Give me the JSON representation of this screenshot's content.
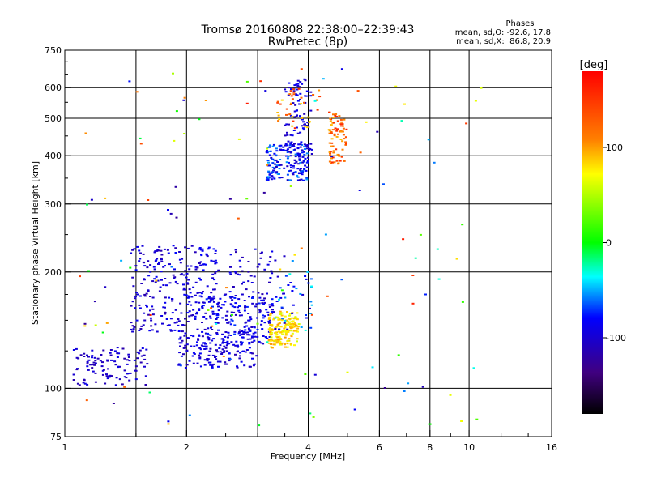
{
  "chart_data": {
    "type": "scatter",
    "title": "Tromsø 20160808 22:38:00–22:39:43",
    "subtitle": "RwPretec (8p)",
    "xlabel": "Frequency [MHz]",
    "ylabel": "Stationary phase Virtual Height [km]",
    "x_scale": "log",
    "y_scale": "log",
    "xlim": [
      1,
      16
    ],
    "ylim": [
      75,
      750
    ],
    "x_ticks": [
      1,
      2,
      4,
      6,
      8,
      10,
      16
    ],
    "x_tick_labels": [
      "1",
      "2",
      "4",
      "6",
      "8",
      "10",
      "16"
    ],
    "y_ticks": [
      75,
      100,
      200,
      300,
      400,
      500,
      600,
      750
    ],
    "y_tick_labels": [
      "75",
      "100",
      "200",
      "300",
      "400",
      "500",
      "600",
      "750"
    ],
    "grid": true,
    "legend_title": "Phases",
    "legend_lines": [
      "mean, sd,O: -92.6, 17.8",
      "mean, sd,X:  86.8, 20.9"
    ],
    "colorbar": {
      "label": "[deg]",
      "range": [
        -180,
        180
      ],
      "ticks": [
        100,
        0,
        -100
      ],
      "tick_labels": [
        "100",
        "0",
        "-100"
      ],
      "colors": [
        "#ff0000",
        "#ff8000",
        "#ffff00",
        "#00ff00",
        "#00ffff",
        "#0000ff",
        "#40007f",
        "#000000"
      ]
    },
    "clusters": [
      {
        "x": [
          1.05,
          1.6
        ],
        "y": [
          102,
          128
        ],
        "phase": [
          -118,
          -88
        ],
        "n": 110
      },
      {
        "x": [
          1.45,
          2.4
        ],
        "y": [
          140,
          235
        ],
        "phase": [
          -115,
          -78
        ],
        "n": 260
      },
      {
        "x": [
          1.9,
          3.0
        ],
        "y": [
          113,
          140
        ],
        "phase": [
          -112,
          -80
        ],
        "n": 160
      },
      {
        "x": [
          2.1,
          3.3
        ],
        "y": [
          130,
          175
        ],
        "phase": [
          -105,
          -70
        ],
        "n": 160
      },
      {
        "x": [
          2.5,
          3.5
        ],
        "y": [
          140,
          230
        ],
        "phase": [
          -115,
          -85
        ],
        "n": 80
      },
      {
        "x": [
          3.2,
          3.8
        ],
        "y": [
          127,
          158
        ],
        "phase": [
          55,
          105
        ],
        "n": 150
      },
      {
        "x": [
          3.2,
          3.75
        ],
        "y": [
          130,
          145
        ],
        "phase": [
          75,
          100
        ],
        "n": 30
      },
      {
        "x": [
          3.3,
          4.1
        ],
        "y": [
          140,
          200
        ],
        "phase": [
          -110,
          -30
        ],
        "n": 40
      },
      {
        "x": [
          3.15,
          4.0
        ],
        "y": [
          345,
          430
        ],
        "phase": [
          -110,
          -50
        ],
        "n": 170
      },
      {
        "x": [
          3.5,
          4.1
        ],
        "y": [
          400,
          640
        ],
        "phase": [
          -112,
          -80
        ],
        "n": 90
      },
      {
        "x": [
          3.3,
          4.3
        ],
        "y": [
          470,
          600
        ],
        "phase": [
          80,
          160
        ],
        "n": 40
      },
      {
        "x": [
          4.5,
          5.0
        ],
        "y": [
          380,
          520
        ],
        "phase": [
          90,
          160
        ],
        "n": 80
      },
      {
        "x": [
          1.05,
          11.0
        ],
        "y": [
          78,
          700
        ],
        "phase": [
          -130,
          170
        ],
        "n": 130
      }
    ]
  }
}
